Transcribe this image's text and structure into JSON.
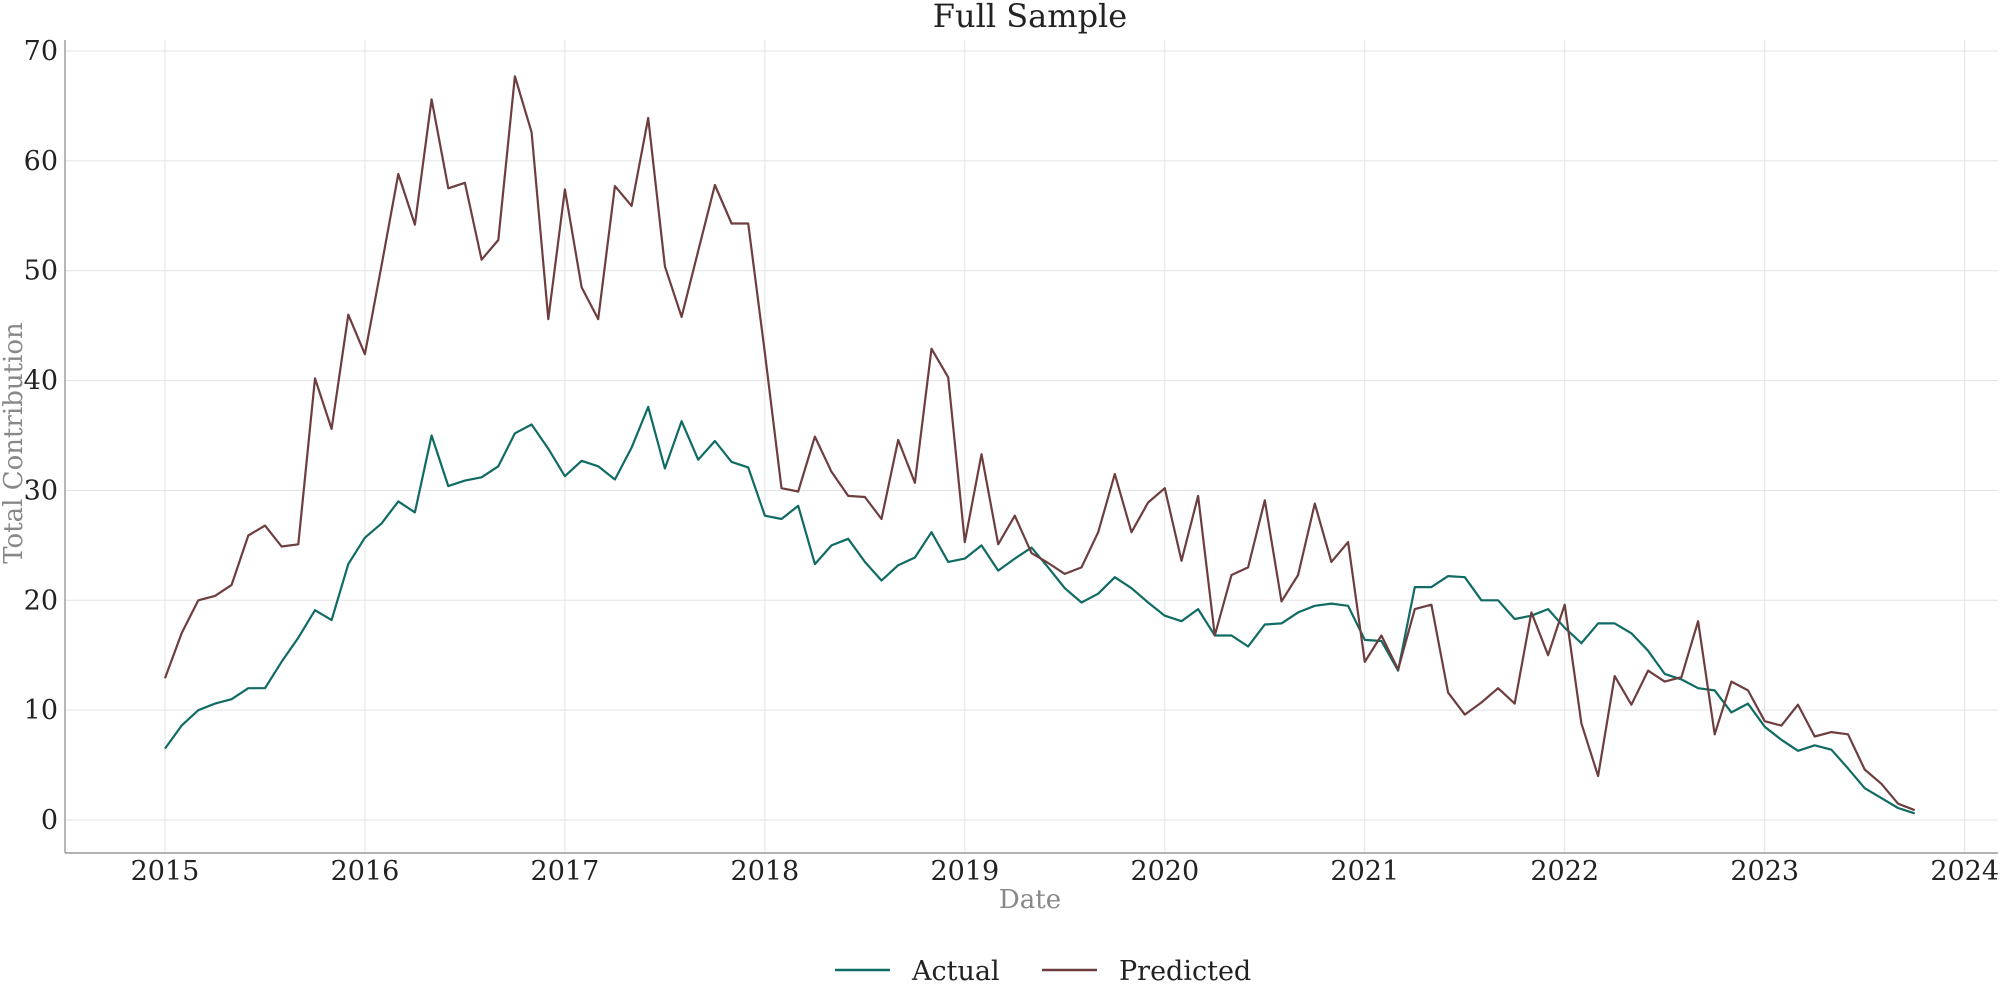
{
  "chart_data": {
    "type": "line",
    "title": "Full Sample",
    "xlabel": "Date",
    "ylabel": "Total Contribution",
    "xlim": [
      "2014-07",
      "2024-03"
    ],
    "ylim": [
      -3,
      71
    ],
    "x_ticks": [
      "2015",
      "2016",
      "2017",
      "2018",
      "2019",
      "2020",
      "2021",
      "2022",
      "2023",
      "2024"
    ],
    "y_ticks": [
      0,
      10,
      20,
      30,
      40,
      50,
      60,
      70
    ],
    "grid": true,
    "legend_position": "bottom-center",
    "start": "2015-01",
    "frequency": "monthly",
    "series": [
      {
        "name": "Actual",
        "color": "#0f6b63",
        "values": [
          6.5,
          8.6,
          10.0,
          10.6,
          11.0,
          12.0,
          12.0,
          14.4,
          16.6,
          19.1,
          18.2,
          23.3,
          25.7,
          27.0,
          29.0,
          28.0,
          35.0,
          30.4,
          30.9,
          31.2,
          32.2,
          35.2,
          36.0,
          33.8,
          31.3,
          32.7,
          32.2,
          31.0,
          33.9,
          37.6,
          32.0,
          36.3,
          32.8,
          34.5,
          32.6,
          32.1,
          27.7,
          27.4,
          28.6,
          23.3,
          25.0,
          25.6,
          23.5,
          21.8,
          23.2,
          23.9,
          26.2,
          23.5,
          23.8,
          25.0,
          22.7,
          23.8,
          24.8,
          23.0,
          21.1,
          19.8,
          20.6,
          22.1,
          21.1,
          19.8,
          18.6,
          18.1,
          19.2,
          16.8,
          16.8,
          15.8,
          17.8,
          17.9,
          18.9,
          19.5,
          19.7,
          19.5,
          16.4,
          16.3,
          13.6,
          21.2,
          21.2,
          22.2,
          22.1,
          20.0,
          20.0,
          18.3,
          18.6,
          19.2,
          17.5,
          16.1,
          17.9,
          17.9,
          17.0,
          15.4,
          13.3,
          12.8,
          12.0,
          11.8,
          9.8,
          10.6,
          8.5,
          7.3,
          6.3,
          6.8,
          6.4,
          4.7,
          2.9,
          2.0,
          1.1,
          0.6
        ]
      },
      {
        "name": "Predicted",
        "color": "#6e3e3e",
        "values": [
          12.9,
          17.0,
          20.0,
          20.4,
          21.4,
          25.9,
          26.8,
          24.9,
          25.1,
          40.2,
          35.6,
          46.0,
          42.4,
          50.5,
          58.8,
          54.2,
          65.6,
          57.5,
          58.0,
          51.0,
          52.8,
          67.7,
          62.6,
          45.6,
          57.4,
          48.5,
          45.6,
          57.7,
          55.9,
          63.9,
          50.4,
          45.8,
          51.8,
          57.8,
          54.3,
          54.3,
          42.5,
          30.2,
          29.9,
          34.9,
          31.7,
          29.5,
          29.4,
          27.4,
          34.6,
          30.7,
          42.9,
          40.3,
          25.3,
          33.3,
          25.1,
          27.7,
          24.3,
          23.4,
          22.4,
          23.0,
          26.2,
          31.5,
          26.2,
          28.9,
          30.2,
          23.6,
          29.5,
          16.8,
          22.3,
          23.0,
          29.1,
          19.9,
          22.3,
          28.8,
          23.5,
          25.3,
          14.4,
          16.8,
          13.7,
          19.2,
          19.6,
          11.6,
          9.6,
          10.7,
          12.0,
          10.6,
          18.9,
          15.0,
          19.6,
          8.8,
          4.0,
          13.1,
          10.5,
          13.6,
          12.6,
          13.0,
          18.1,
          7.8,
          12.6,
          11.8,
          9.0,
          8.6,
          10.5,
          7.6,
          8.0,
          7.8,
          4.6,
          3.3,
          1.5,
          0.9
        ]
      }
    ]
  }
}
